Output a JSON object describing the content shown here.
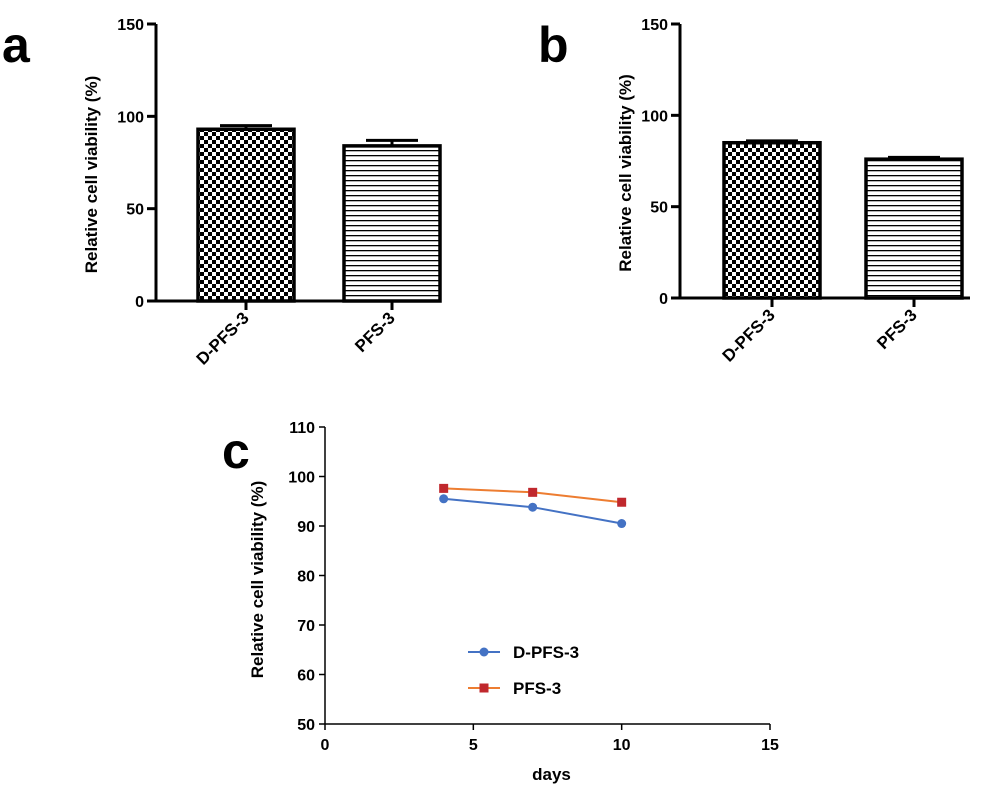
{
  "chart_data": [
    {
      "panel": "a",
      "type": "bar",
      "ylabel": "Relative cell viability (%)",
      "ylim": [
        0,
        150
      ],
      "yticks": [
        0,
        50,
        100,
        150
      ],
      "categories": [
        "D-PFS-3",
        "PFS-3"
      ],
      "values": [
        93,
        84
      ],
      "errors": [
        2,
        3
      ],
      "patterns": [
        "checker",
        "hstripes"
      ],
      "grid": false
    },
    {
      "panel": "b",
      "type": "bar",
      "ylabel": "Relative cell viability (%)",
      "ylim": [
        0,
        150
      ],
      "yticks": [
        0,
        50,
        100,
        150
      ],
      "categories": [
        "D-PFS-3",
        "PFS-3"
      ],
      "values": [
        85,
        76
      ],
      "errors": [
        1,
        1
      ],
      "patterns": [
        "checker",
        "hstripes"
      ],
      "grid": false
    },
    {
      "panel": "c",
      "type": "line",
      "xlabel": "days",
      "ylabel": "Relative cell viability (%)",
      "xlim": [
        0,
        15
      ],
      "ylim": [
        50,
        110
      ],
      "xticks": [
        0,
        5,
        10,
        15
      ],
      "yticks": [
        50,
        60,
        70,
        80,
        90,
        100,
        110
      ],
      "legend_position": "center-left",
      "grid": false,
      "series": [
        {
          "name": "D-PFS-3",
          "x": [
            4,
            7,
            10
          ],
          "y": [
            95.5,
            93.8,
            90.5
          ],
          "color": "#4472c4",
          "marker": "circle"
        },
        {
          "name": "PFS-3",
          "x": [
            4,
            7,
            10
          ],
          "y": [
            97.6,
            96.8,
            94.8
          ],
          "color": "#ed7d31",
          "marker_color": "#c0282d",
          "marker": "square"
        }
      ]
    }
  ]
}
